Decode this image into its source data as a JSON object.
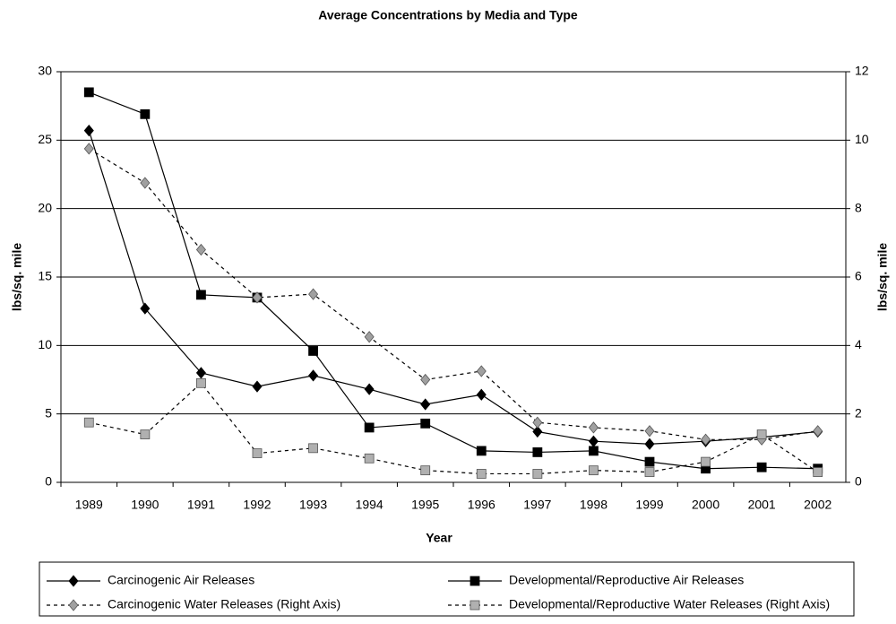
{
  "chart_data": {
    "type": "line",
    "title": "Average Concentrations by Media and Type",
    "x_label": "Year",
    "y_label": "lbs/sq. mile",
    "y2_label": "lbs/sq. mile",
    "categories": [
      "1989",
      "1990",
      "1991",
      "1992",
      "1993",
      "1994",
      "1995",
      "1996",
      "1997",
      "1998",
      "1999",
      "2000",
      "2001",
      "2002"
    ],
    "ylim": [
      0,
      30
    ],
    "yticks": [
      0,
      5,
      10,
      15,
      20,
      25,
      30
    ],
    "y2lim": [
      0,
      12
    ],
    "y2ticks": [
      0,
      2,
      4,
      6,
      8,
      10,
      12
    ],
    "grid": true,
    "legend": "bottom",
    "series": [
      {
        "name": "Carcinogenic Air Releases",
        "color": "#000000",
        "marker": "diamond",
        "line_style": "solid",
        "values": [
          25.7,
          12.7,
          8.0,
          7.0,
          7.8,
          6.8,
          5.7,
          6.4,
          3.7,
          3.0,
          2.8,
          3.0,
          3.3,
          3.7
        ]
      },
      {
        "name": "Developmental/Reproductive Air Releases",
        "color": "#000000",
        "marker": "square",
        "line_style": "solid",
        "values": [
          28.5,
          26.9,
          13.7,
          13.5,
          9.6,
          4.0,
          4.3,
          2.3,
          2.2,
          2.3,
          1.5,
          1.0,
          1.1,
          1.0
        ]
      },
      {
        "name": "Carcinogenic Water Releases (Right Axis)",
        "color": "#a0a0a0",
        "marker": "diamond",
        "line_style": "dashed",
        "axis": "y2",
        "values": [
          9.75,
          8.75,
          6.8,
          5.4,
          5.5,
          4.25,
          3.0,
          3.25,
          1.75,
          1.6,
          1.5,
          1.25,
          1.25,
          1.5
        ]
      },
      {
        "name": "Developmental/Reproductive Water Releases (Right Axis)",
        "color": "#b0b0b0",
        "marker": "square",
        "line_style": "dashed",
        "axis": "y2",
        "values": [
          1.75,
          1.4,
          2.9,
          0.85,
          1.0,
          0.7,
          0.35,
          0.25,
          0.25,
          0.35,
          0.3,
          0.6,
          1.4,
          0.3
        ]
      }
    ]
  }
}
